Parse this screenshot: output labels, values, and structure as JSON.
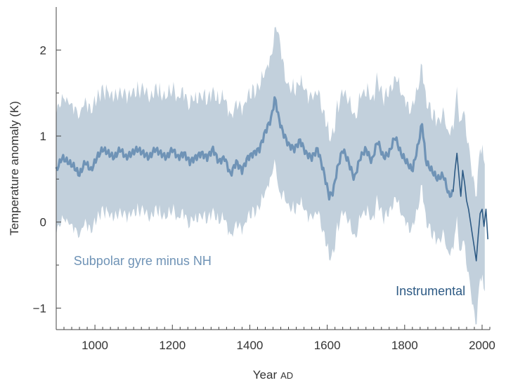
{
  "chart_data": {
    "type": "line",
    "title": "",
    "xlabel": "Year",
    "xlabel_suffix": "AD",
    "ylabel": "Temperature anomaly (K)",
    "xlim": [
      900,
      2020
    ],
    "ylim": [
      -1.25,
      2.5
    ],
    "x_ticks": [
      1000,
      1200,
      1400,
      1600,
      1800,
      2000
    ],
    "x_tick_labels": [
      "1000",
      "1200",
      "1400",
      "1600",
      "1800",
      "2000"
    ],
    "y_ticks": [
      -1,
      0,
      1,
      2
    ],
    "y_tick_labels": [
      "−1",
      "0",
      "1",
      "2"
    ],
    "colors": {
      "band": "#c2d0dc",
      "proxy": "#6f93b6",
      "instrumental": "#2d5a84",
      "axis": "#444444"
    },
    "series": [
      {
        "name": "Subpolar gyre minus NH",
        "kind": "line_with_band",
        "band_halfwidth": 0.7,
        "x": [
          900,
          915,
          930,
          945,
          960,
          975,
          990,
          1005,
          1020,
          1035,
          1050,
          1065,
          1080,
          1095,
          1110,
          1125,
          1140,
          1155,
          1170,
          1185,
          1200,
          1215,
          1230,
          1245,
          1260,
          1275,
          1290,
          1305,
          1320,
          1335,
          1350,
          1365,
          1380,
          1395,
          1410,
          1425,
          1440,
          1455,
          1465,
          1475,
          1485,
          1500,
          1515,
          1530,
          1545,
          1560,
          1575,
          1590,
          1605,
          1615,
          1625,
          1640,
          1655,
          1670,
          1685,
          1700,
          1715,
          1730,
          1745,
          1760,
          1775,
          1790,
          1805,
          1820,
          1835,
          1845,
          1855,
          1870,
          1885,
          1900,
          1915,
          1925
        ],
        "values": [
          0.6,
          0.75,
          0.7,
          0.65,
          0.55,
          0.7,
          0.6,
          0.75,
          0.85,
          0.8,
          0.75,
          0.85,
          0.75,
          0.8,
          0.85,
          0.8,
          0.75,
          0.85,
          0.8,
          0.75,
          0.85,
          0.75,
          0.8,
          0.7,
          0.75,
          0.8,
          0.75,
          0.85,
          0.7,
          0.75,
          0.55,
          0.7,
          0.6,
          0.75,
          0.8,
          0.85,
          1.05,
          1.2,
          1.45,
          1.2,
          1.05,
          0.9,
          0.85,
          0.95,
          0.8,
          0.75,
          0.85,
          0.6,
          0.3,
          0.35,
          0.6,
          0.85,
          0.7,
          0.5,
          0.75,
          0.85,
          0.7,
          0.95,
          0.75,
          0.8,
          1.0,
          0.8,
          0.7,
          0.6,
          0.9,
          1.15,
          0.7,
          0.6,
          0.5,
          0.55,
          0.3,
          0.35
        ]
      },
      {
        "name": "Instrumental",
        "kind": "line",
        "x": [
          1925,
          1930,
          1935,
          1940,
          1945,
          1950,
          1955,
          1960,
          1965,
          1970,
          1975,
          1980,
          1985,
          1990,
          1995,
          2000,
          2005,
          2010,
          2015
        ],
        "values": [
          0.35,
          0.6,
          0.8,
          0.55,
          0.3,
          0.6,
          0.45,
          0.25,
          0.15,
          0.0,
          -0.15,
          -0.3,
          -0.45,
          -0.15,
          0.1,
          0.15,
          -0.05,
          0.15,
          -0.2
        ]
      }
    ],
    "annotations": [
      {
        "text": "Subpolar gyre minus NH",
        "series": "Subpolar gyre minus NH"
      },
      {
        "text": "Instrumental",
        "series": "Instrumental"
      }
    ]
  }
}
